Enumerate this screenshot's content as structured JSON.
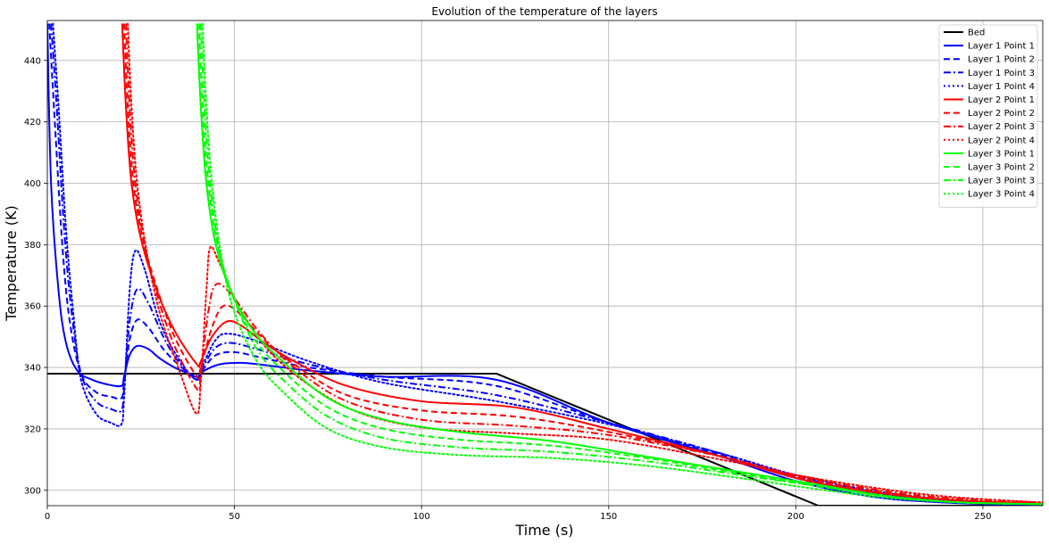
{
  "chart_data": {
    "type": "line",
    "title": "Evolution of the temperature of the layers",
    "xlabel": "Time (s)",
    "ylabel": "Temperature (K)",
    "xlim": [
      0,
      266
    ],
    "ylim": [
      295,
      453
    ],
    "x_ticks": [
      0,
      50,
      100,
      150,
      200,
      250
    ],
    "y_ticks": [
      300,
      320,
      340,
      360,
      380,
      400,
      420,
      440
    ],
    "grid": true,
    "legend_position": "top-right",
    "series": [
      {
        "name": "Bed",
        "color": "#000000",
        "dash": "solid",
        "points": [
          [
            0,
            338
          ],
          [
            120,
            338
          ],
          [
            206,
            295
          ],
          [
            266,
            295
          ]
        ]
      },
      {
        "name": "Layer 1 Point 1",
        "color": "#0000ff",
        "dash": "solid",
        "points": [
          [
            0,
            452
          ],
          [
            1,
            400
          ],
          [
            3,
            365
          ],
          [
            5,
            348
          ],
          [
            8,
            339
          ],
          [
            12,
            336
          ],
          [
            16,
            334.5
          ],
          [
            19.8,
            334
          ],
          [
            20.5,
            337
          ],
          [
            22,
            344
          ],
          [
            24,
            347
          ],
          [
            27,
            346
          ],
          [
            30,
            343
          ],
          [
            34,
            340
          ],
          [
            38,
            338
          ],
          [
            40,
            337
          ],
          [
            42,
            339
          ],
          [
            46,
            341
          ],
          [
            52,
            341.5
          ],
          [
            60,
            340.5
          ],
          [
            70,
            339
          ],
          [
            90,
            337
          ],
          [
            120,
            336
          ],
          [
            150,
            322
          ],
          [
            180,
            311
          ],
          [
            200,
            303
          ],
          [
            220,
            298
          ],
          [
            240,
            296
          ],
          [
            266,
            295
          ]
        ]
      },
      {
        "name": "Layer 1 Point 2",
        "color": "#0000ff",
        "dash": "dashed",
        "points": [
          [
            0.5,
            452
          ],
          [
            2,
            420
          ],
          [
            4,
            380
          ],
          [
            6,
            355
          ],
          [
            9,
            338
          ],
          [
            13,
            332
          ],
          [
            17,
            330.5
          ],
          [
            19.8,
            330
          ],
          [
            20.5,
            335
          ],
          [
            22,
            349
          ],
          [
            24,
            355.5
          ],
          [
            27,
            353
          ],
          [
            31,
            346
          ],
          [
            35,
            341
          ],
          [
            40,
            336.5
          ],
          [
            42,
            340
          ],
          [
            45,
            344
          ],
          [
            50,
            345
          ],
          [
            58,
            343
          ],
          [
            70,
            340
          ],
          [
            90,
            337
          ],
          [
            120,
            334
          ],
          [
            150,
            322
          ],
          [
            180,
            311.5
          ],
          [
            200,
            304
          ],
          [
            220,
            299
          ],
          [
            240,
            296.5
          ],
          [
            266,
            295
          ]
        ]
      },
      {
        "name": "Layer 1 Point 3",
        "color": "#0000ff",
        "dash": "dashdot",
        "points": [
          [
            1,
            452
          ],
          [
            2.5,
            425
          ],
          [
            4.5,
            385
          ],
          [
            6.5,
            358
          ],
          [
            9,
            338
          ],
          [
            13,
            329
          ],
          [
            17,
            326.5
          ],
          [
            19.8,
            326
          ],
          [
            20.5,
            333
          ],
          [
            22,
            355
          ],
          [
            24,
            365.5
          ],
          [
            27,
            361
          ],
          [
            31,
            350
          ],
          [
            35,
            342
          ],
          [
            40,
            336
          ],
          [
            42,
            341
          ],
          [
            45,
            346.5
          ],
          [
            49,
            348
          ],
          [
            56,
            346
          ],
          [
            70,
            341
          ],
          [
            90,
            336
          ],
          [
            120,
            331
          ],
          [
            150,
            322
          ],
          [
            180,
            312
          ],
          [
            200,
            304.5
          ],
          [
            220,
            299.5
          ],
          [
            240,
            296.5
          ],
          [
            266,
            295
          ]
        ]
      },
      {
        "name": "Layer 1 Point 4",
        "color": "#0000ff",
        "dash": "dotted",
        "points": [
          [
            1.5,
            452
          ],
          [
            3,
            425
          ],
          [
            5,
            385
          ],
          [
            7,
            357
          ],
          [
            9,
            336
          ],
          [
            13,
            325
          ],
          [
            17,
            322
          ],
          [
            19.8,
            321.5
          ],
          [
            20.5,
            330
          ],
          [
            22,
            365
          ],
          [
            23.5,
            378
          ],
          [
            26,
            372
          ],
          [
            30,
            355
          ],
          [
            35,
            343
          ],
          [
            40,
            336
          ],
          [
            42,
            342
          ],
          [
            45,
            349
          ],
          [
            48,
            351
          ],
          [
            55,
            349
          ],
          [
            70,
            342
          ],
          [
            90,
            335
          ],
          [
            120,
            329
          ],
          [
            150,
            321.5
          ],
          [
            180,
            312
          ],
          [
            200,
            305
          ],
          [
            220,
            300
          ],
          [
            240,
            297
          ],
          [
            266,
            295
          ]
        ]
      },
      {
        "name": "Layer 2 Point 1",
        "color": "#ff0000",
        "dash": "solid",
        "points": [
          [
            20,
            452
          ],
          [
            21,
            425
          ],
          [
            22.5,
            400
          ],
          [
            25,
            382
          ],
          [
            29,
            366
          ],
          [
            34,
            352
          ],
          [
            40,
            341
          ],
          [
            41,
            342
          ],
          [
            44,
            350
          ],
          [
            48,
            355
          ],
          [
            52,
            353.5
          ],
          [
            58,
            348
          ],
          [
            66,
            342
          ],
          [
            80,
            334
          ],
          [
            100,
            329
          ],
          [
            125,
            327
          ],
          [
            150,
            320
          ],
          [
            180,
            311
          ],
          [
            200,
            304
          ],
          [
            220,
            299.5
          ],
          [
            240,
            297
          ],
          [
            266,
            295.5
          ]
        ]
      },
      {
        "name": "Layer 2 Point 2",
        "color": "#ff0000",
        "dash": "dashed",
        "points": [
          [
            20.5,
            452
          ],
          [
            21.5,
            425
          ],
          [
            23,
            400
          ],
          [
            25.5,
            382
          ],
          [
            29,
            367
          ],
          [
            34,
            350
          ],
          [
            40,
            337
          ],
          [
            41,
            340
          ],
          [
            44,
            353
          ],
          [
            47,
            360
          ],
          [
            51,
            358
          ],
          [
            58,
            349
          ],
          [
            66,
            341
          ],
          [
            80,
            331
          ],
          [
            100,
            326
          ],
          [
            125,
            324
          ],
          [
            150,
            319
          ],
          [
            180,
            311
          ],
          [
            200,
            304.5
          ],
          [
            220,
            300
          ],
          [
            240,
            297
          ],
          [
            266,
            295.5
          ]
        ]
      },
      {
        "name": "Layer 2 Point 3",
        "color": "#ff0000",
        "dash": "dashdot",
        "points": [
          [
            21,
            452
          ],
          [
            22,
            425
          ],
          [
            23.5,
            400
          ],
          [
            26,
            380
          ],
          [
            29.5,
            363
          ],
          [
            34,
            347
          ],
          [
            40,
            333
          ],
          [
            41,
            338
          ],
          [
            43,
            358
          ],
          [
            45,
            367
          ],
          [
            49,
            364
          ],
          [
            57,
            351
          ],
          [
            66,
            340
          ],
          [
            80,
            329
          ],
          [
            100,
            323
          ],
          [
            125,
            321
          ],
          [
            150,
            318
          ],
          [
            180,
            311
          ],
          [
            200,
            305
          ],
          [
            220,
            300.5
          ],
          [
            240,
            297.5
          ],
          [
            266,
            296
          ]
        ]
      },
      {
        "name": "Layer 2 Point 4",
        "color": "#ff0000",
        "dash": "dotted",
        "points": [
          [
            21.5,
            452
          ],
          [
            22.5,
            425
          ],
          [
            24,
            400
          ],
          [
            26.5,
            378
          ],
          [
            30,
            358
          ],
          [
            35,
            340
          ],
          [
            39.8,
            325
          ],
          [
            41,
            335
          ],
          [
            42.5,
            365
          ],
          [
            43.5,
            379
          ],
          [
            46,
            374
          ],
          [
            52,
            358
          ],
          [
            62,
            342
          ],
          [
            80,
            327
          ],
          [
            100,
            320.5
          ],
          [
            125,
            318.5
          ],
          [
            150,
            316.5
          ],
          [
            180,
            310
          ],
          [
            200,
            305
          ],
          [
            220,
            301
          ],
          [
            240,
            298
          ],
          [
            266,
            296
          ]
        ]
      },
      {
        "name": "Layer 3 Point 1",
        "color": "#00ff00",
        "dash": "solid",
        "points": [
          [
            40,
            452
          ],
          [
            41,
            425
          ],
          [
            42.5,
            400
          ],
          [
            45,
            380
          ],
          [
            49,
            365
          ],
          [
            55,
            352
          ],
          [
            62,
            343
          ],
          [
            75,
            330
          ],
          [
            90,
            323
          ],
          [
            110,
            319
          ],
          [
            135,
            316
          ],
          [
            160,
            311
          ],
          [
            185,
            306
          ],
          [
            205,
            302
          ],
          [
            225,
            298
          ],
          [
            245,
            296
          ],
          [
            266,
            295.5
          ]
        ]
      },
      {
        "name": "Layer 3 Point 2",
        "color": "#00ff00",
        "dash": "dashed",
        "points": [
          [
            40.5,
            452
          ],
          [
            41.5,
            425
          ],
          [
            43,
            400
          ],
          [
            45.5,
            380
          ],
          [
            49,
            365
          ],
          [
            55,
            350
          ],
          [
            62,
            340
          ],
          [
            75,
            327
          ],
          [
            90,
            320
          ],
          [
            110,
            316.5
          ],
          [
            135,
            314.5
          ],
          [
            160,
            310.5
          ],
          [
            185,
            305.5
          ],
          [
            205,
            301.5
          ],
          [
            225,
            298
          ],
          [
            245,
            296
          ],
          [
            266,
            295.5
          ]
        ]
      },
      {
        "name": "Layer 3 Point 3",
        "color": "#00ff00",
        "dash": "dashdot",
        "points": [
          [
            41,
            452
          ],
          [
            42,
            425
          ],
          [
            43.5,
            400
          ],
          [
            46,
            378
          ],
          [
            50,
            362
          ],
          [
            56,
            346
          ],
          [
            63,
            336
          ],
          [
            75,
            324
          ],
          [
            90,
            317
          ],
          [
            110,
            314
          ],
          [
            135,
            312.5
          ],
          [
            160,
            309.5
          ],
          [
            185,
            305
          ],
          [
            205,
            301.5
          ],
          [
            225,
            298
          ],
          [
            245,
            296
          ],
          [
            266,
            295.5
          ]
        ]
      },
      {
        "name": "Layer 3 Point 4",
        "color": "#00ff00",
        "dash": "dotted",
        "points": [
          [
            41.5,
            452
          ],
          [
            42.5,
            425
          ],
          [
            44,
            400
          ],
          [
            46.5,
            376
          ],
          [
            50,
            358
          ],
          [
            56,
            342
          ],
          [
            63,
            332
          ],
          [
            75,
            320
          ],
          [
            90,
            314
          ],
          [
            110,
            311.5
          ],
          [
            135,
            310.5
          ],
          [
            160,
            308
          ],
          [
            185,
            304
          ],
          [
            205,
            300.5
          ],
          [
            225,
            297.5
          ],
          [
            245,
            296
          ],
          [
            266,
            295.5
          ]
        ]
      }
    ]
  }
}
